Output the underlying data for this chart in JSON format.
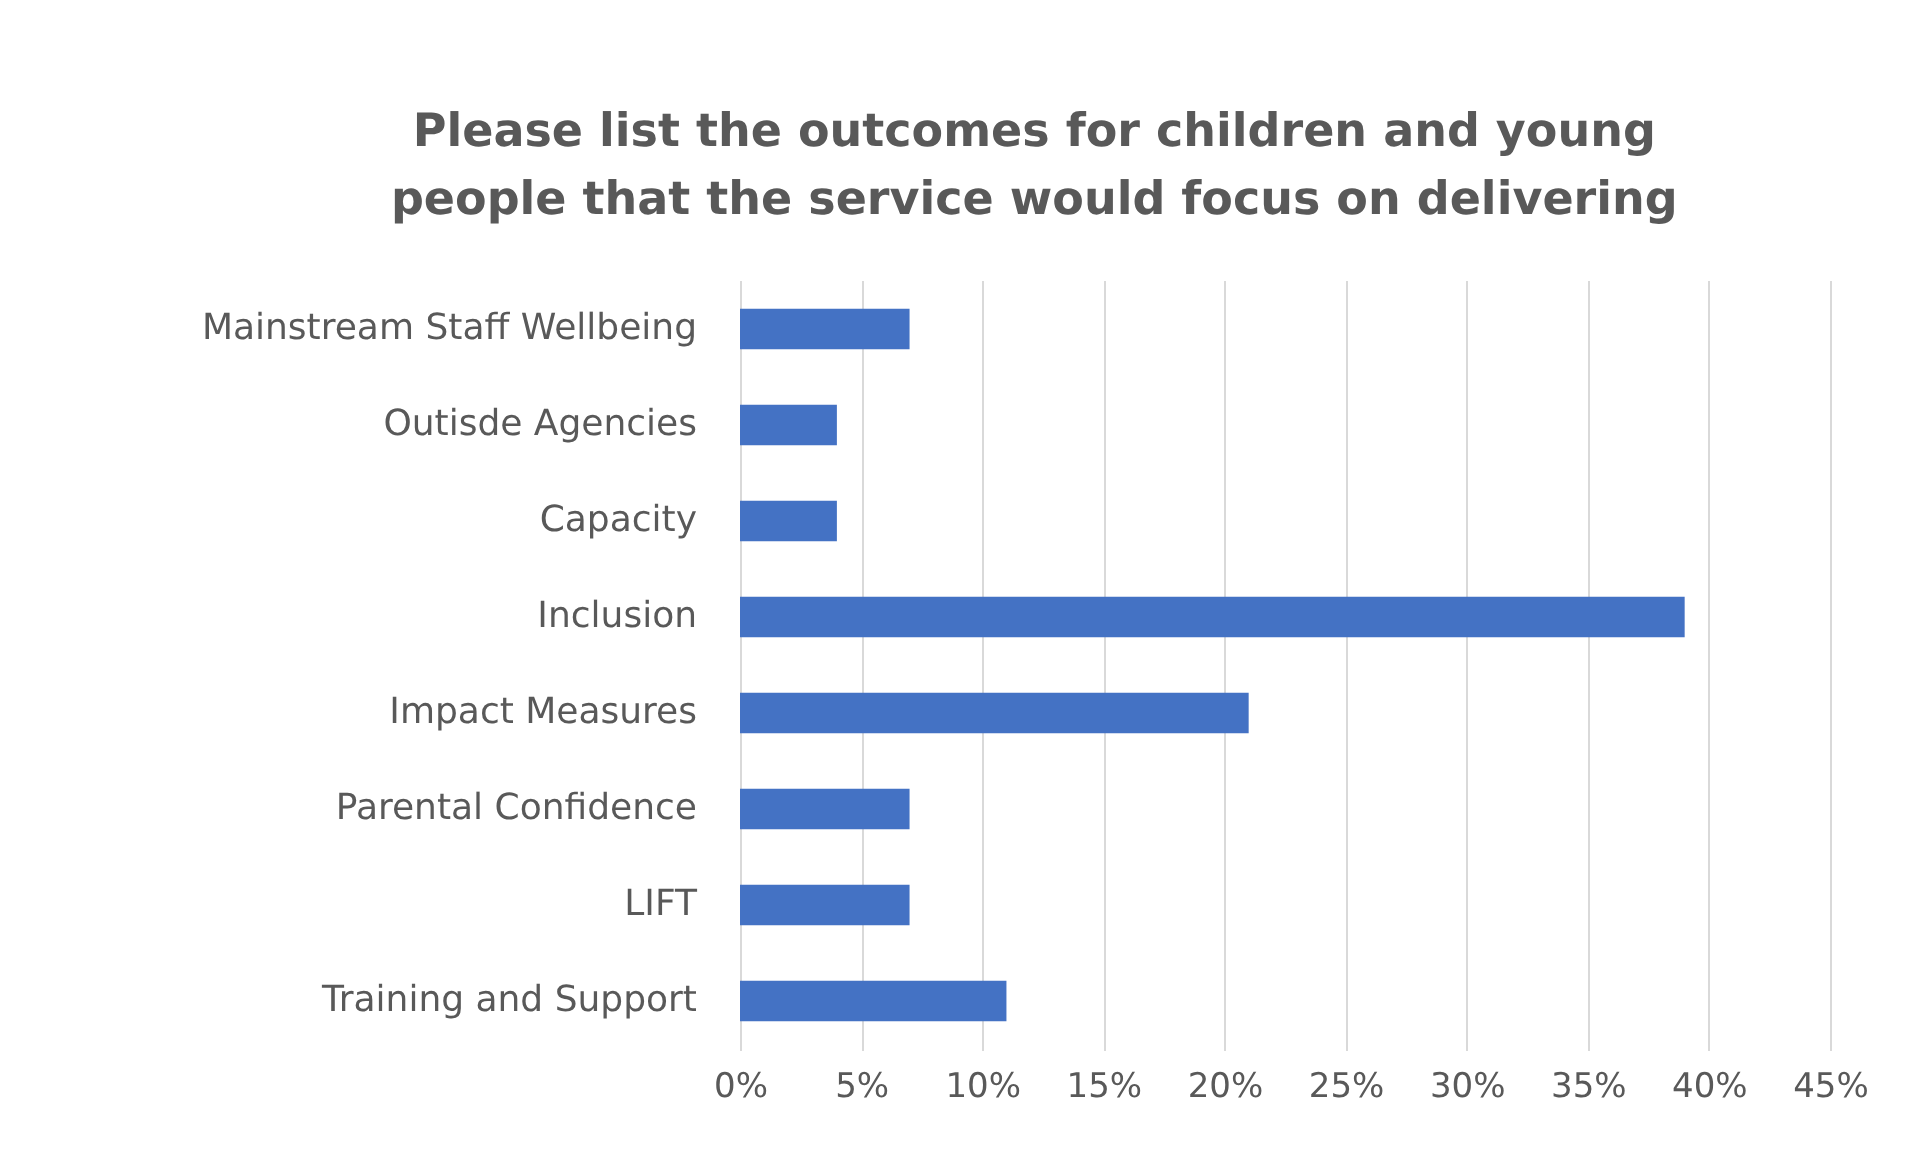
{
  "chart_data": {
    "type": "bar",
    "orientation": "horizontal",
    "title": "Please list the outcomes for children and young people that the service would focus on delivering",
    "categories": [
      "Mainstream Staff Wellbeing",
      "Outisde Agencies",
      "Capacity",
      "Inclusion",
      "Impact Measures",
      "Parental Confidence",
      "LIFT",
      "Training and Support"
    ],
    "values": [
      7,
      4,
      4,
      39,
      21,
      7,
      7,
      11
    ],
    "color": "#4472c4",
    "xlim": [
      0,
      45
    ],
    "xticks": [
      {
        "value": 0,
        "label": "0%"
      },
      {
        "value": 5,
        "label": "5%"
      },
      {
        "value": 10,
        "label": "10%"
      },
      {
        "value": 15,
        "label": "15%"
      },
      {
        "value": 20,
        "label": "20%"
      },
      {
        "value": 25,
        "label": "25%"
      },
      {
        "value": 30,
        "label": "30%"
      },
      {
        "value": 35,
        "label": "35%"
      },
      {
        "value": 40,
        "label": "40%"
      },
      {
        "value": 45,
        "label": "45%"
      }
    ],
    "grid": "x"
  }
}
